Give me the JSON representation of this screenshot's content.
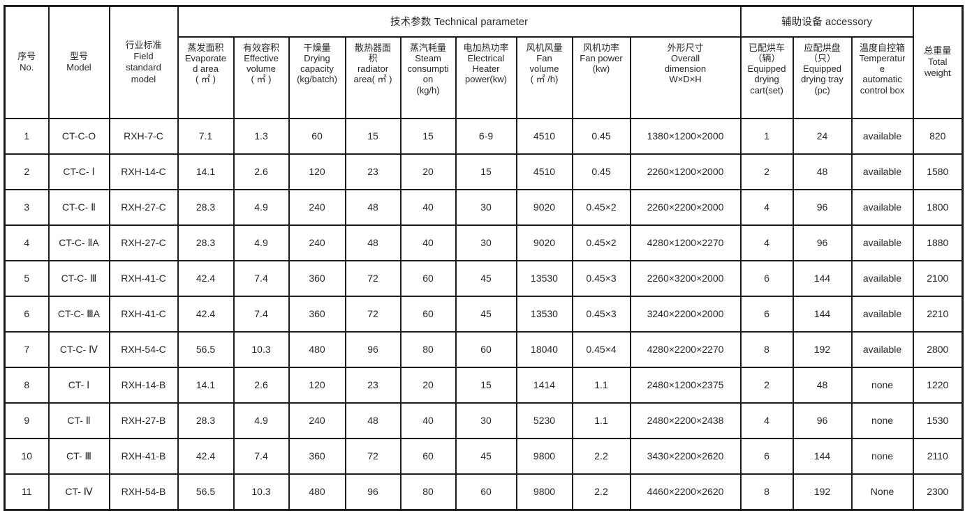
{
  "table": {
    "groups": {
      "technical": "技术参数 Technical parameter",
      "accessory": "辅助设备 accessory"
    },
    "merged": {
      "no": "序号\nNo.",
      "model": "型号\nModel",
      "field_standard": "行业标准\nField\nstandard\nmodel",
      "total_weight": "总重量\nTotal\nweight"
    },
    "param_headers": [
      "蒸发面积\nEvaporate\nd area\n( ㎡ )",
      "有效容积\nEffective\nvolume\n( ㎡ )",
      "干燥量\nDrying\ncapacity\n(kg/batch)",
      "散热器面\n积\nradiator\narea( ㎡ )",
      "蒸汽耗量\nSteam\nconsumpti\non\n(kg/h)",
      "电加热功率\nElectrical\nHeater\npower(kw)",
      "风机风量\nFan\nvolume\n( ㎡ /h)",
      "风机功率\nFan power\n(kw)",
      "外形尺寸\nOverall\ndimension\nW×D×H",
      "已配烘车\n（辆）\nEquipped\ndrying\ncart(set)",
      "应配烘盘\n（只）\nEquipped\ndrying tray\n(pc)",
      "温度自控箱\nTemperatur\ne\nautomatic\ncontrol box"
    ],
    "rows": [
      [
        "1",
        "CT-C-O",
        "RXH-7-C",
        "7.1",
        "1.3",
        "60",
        "15",
        "15",
        "6-9",
        "4510",
        "0.45",
        "1380×1200×2000",
        "1",
        "24",
        "available",
        "820"
      ],
      [
        "2",
        "CT-C- Ⅰ",
        "RXH-14-C",
        "14.1",
        "2.6",
        "120",
        "23",
        "20",
        "15",
        "4510",
        "0.45",
        "2260×1200×2000",
        "2",
        "48",
        "available",
        "1580"
      ],
      [
        "3",
        "CT-C- Ⅱ",
        "RXH-27-C",
        "28.3",
        "4.9",
        "240",
        "48",
        "40",
        "30",
        "9020",
        "0.45×2",
        "2260×2200×2000",
        "4",
        "96",
        "available",
        "1800"
      ],
      [
        "4",
        "CT-C- ⅡA",
        "RXH-27-C",
        "28.3",
        "4.9",
        "240",
        "48",
        "40",
        "30",
        "9020",
        "0.45×2",
        "4280×1200×2270",
        "4",
        "96",
        "available",
        "1880"
      ],
      [
        "5",
        "CT-C- Ⅲ",
        "RXH-41-C",
        "42.4",
        "7.4",
        "360",
        "72",
        "60",
        "45",
        "13530",
        "0.45×3",
        "2260×3200×2000",
        "6",
        "144",
        "available",
        "2100"
      ],
      [
        "6",
        "CT-C- ⅢA",
        "RXH-41-C",
        "42.4",
        "7.4",
        "360",
        "72",
        "60",
        "45",
        "13530",
        "0.45×3",
        "3240×2200×2000",
        "6",
        "144",
        "available",
        "2210"
      ],
      [
        "7",
        "CT-C- Ⅳ",
        "RXH-54-C",
        "56.5",
        "10.3",
        "480",
        "96",
        "80",
        "60",
        "18040",
        "0.45×4",
        "4280×2200×2270",
        "8",
        "192",
        "available",
        "2800"
      ],
      [
        "8",
        "CT- Ⅰ",
        "RXH-14-B",
        "14.1",
        "2.6",
        "120",
        "23",
        "20",
        "15",
        "1414",
        "1.1",
        "2480×1200×2375",
        "2",
        "48",
        "none",
        "1220"
      ],
      [
        "9",
        "CT- Ⅱ",
        "RXH-27-B",
        "28.3",
        "4.9",
        "240",
        "48",
        "40",
        "30",
        "5230",
        "1.1",
        "2480×2200×2438",
        "4",
        "96",
        "none",
        "1530"
      ],
      [
        "10",
        "CT- Ⅲ",
        "RXH-41-B",
        "42.4",
        "7.4",
        "360",
        "72",
        "60",
        "45",
        "9800",
        "2.2",
        "3430×2200×2620",
        "6",
        "144",
        "none",
        "2110"
      ],
      [
        "11",
        "CT- Ⅳ",
        "RXH-54-B",
        "56.5",
        "10.3",
        "480",
        "96",
        "80",
        "60",
        "9800",
        "2.2",
        "4460×2200×2620",
        "8",
        "192",
        "None",
        "2300"
      ]
    ]
  }
}
